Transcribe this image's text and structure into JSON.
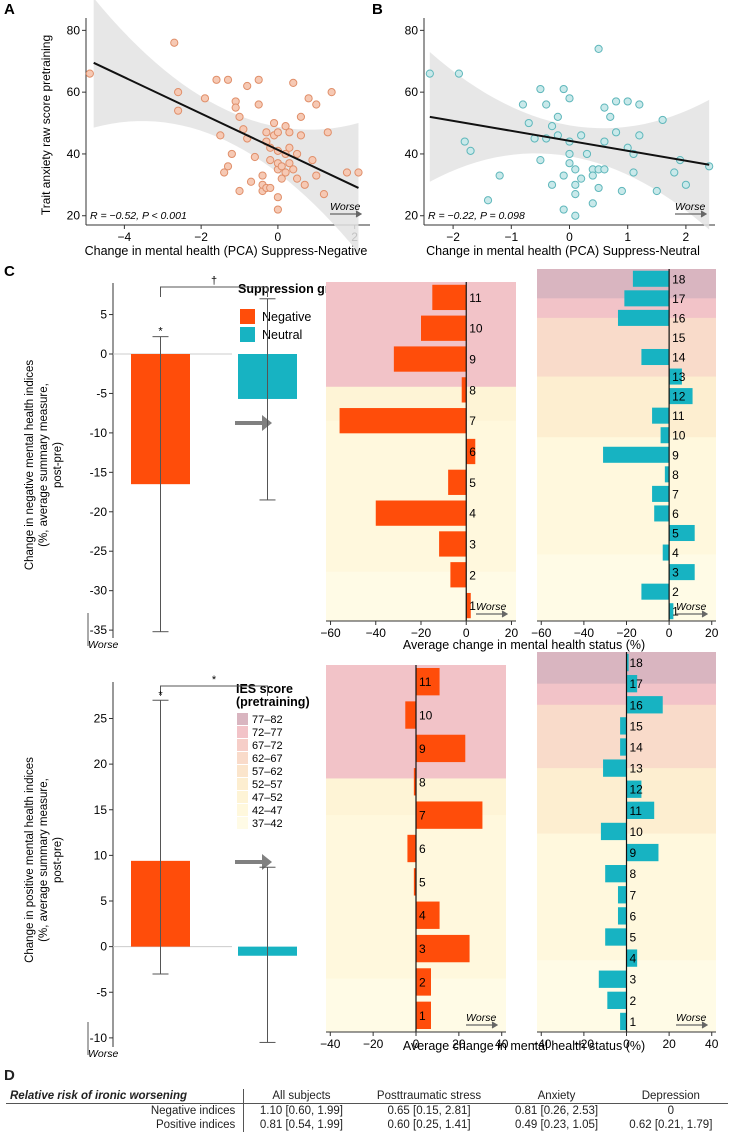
{
  "panels": {
    "A": "A",
    "B": "B",
    "C": "C",
    "D": "D"
  },
  "colors": {
    "negative": "#ff4d0a",
    "neutral": "#17b3c2",
    "ci_band": "#e3e3e3",
    "point_a_fill": "#f6c9b4",
    "point_a_stroke": "#e08f6a",
    "point_b_fill": "#c9e9ea",
    "point_b_stroke": "#5fb7bb"
  },
  "ies_colors": {
    "77-82": "#d9b5c0",
    "72-77": "#f2c3c8",
    "67-72": "#f6cec8",
    "62-67": "#f9dbca",
    "57-62": "#fbe5cc",
    "52-57": "#fdeed0",
    "47-52": "#fef4d6",
    "42-47": "#fff8dd",
    "37-42": "#fffbe6"
  },
  "chart_data": [
    {
      "id": "A",
      "type": "scatter",
      "ylabel": "Trait anxiety raw score pretraining",
      "xlabel": "Change in mental health (PCA) Suppress-Negative",
      "xlim": [
        -5,
        2.4
      ],
      "ylim": [
        17,
        84
      ],
      "xticks": [
        "-4",
        "-2",
        "0",
        "2"
      ],
      "yticks": [
        "20",
        "40",
        "60",
        "80"
      ],
      "annotation": "R = −0.52, P < 0.001",
      "worse_label": "Worse",
      "regression": {
        "x0": -4.8,
        "y0": 69.5,
        "x1": 2.1,
        "y1": 29
      },
      "points": [
        [
          -4.9,
          66
        ],
        [
          -2.7,
          76
        ],
        [
          -2.6,
          54
        ],
        [
          -2.6,
          60
        ],
        [
          -1.9,
          58
        ],
        [
          -1.6,
          64
        ],
        [
          -1.5,
          46
        ],
        [
          -1.4,
          34
        ],
        [
          -1.3,
          36
        ],
        [
          -1.3,
          64
        ],
        [
          -1.2,
          40
        ],
        [
          -1.1,
          57
        ],
        [
          -1.1,
          55
        ],
        [
          -1.0,
          52
        ],
        [
          -1.0,
          28
        ],
        [
          -0.9,
          48
        ],
        [
          -0.8,
          45
        ],
        [
          -0.8,
          62
        ],
        [
          -0.7,
          31
        ],
        [
          -0.6,
          39
        ],
        [
          -0.5,
          64
        ],
        [
          -0.5,
          56
        ],
        [
          -0.4,
          28
        ],
        [
          -0.4,
          30
        ],
        [
          -0.4,
          33
        ],
        [
          -0.3,
          29
        ],
        [
          -0.3,
          44
        ],
        [
          -0.3,
          47
        ],
        [
          -0.2,
          42
        ],
        [
          -0.2,
          38
        ],
        [
          -0.2,
          29
        ],
        [
          -0.1,
          46
        ],
        [
          -0.1,
          50
        ],
        [
          0.0,
          35
        ],
        [
          0.0,
          41
        ],
        [
          0.0,
          47
        ],
        [
          0.0,
          37
        ],
        [
          0.0,
          26
        ],
        [
          0.0,
          22
        ],
        [
          0.1,
          32
        ],
        [
          0.1,
          36
        ],
        [
          0.2,
          49
        ],
        [
          0.2,
          40
        ],
        [
          0.2,
          34
        ],
        [
          0.3,
          47
        ],
        [
          0.3,
          42
        ],
        [
          0.3,
          37
        ],
        [
          0.4,
          63
        ],
        [
          0.4,
          35
        ],
        [
          0.5,
          32
        ],
        [
          0.5,
          40
        ],
        [
          0.6,
          52
        ],
        [
          0.6,
          46
        ],
        [
          0.7,
          30
        ],
        [
          0.8,
          58
        ],
        [
          0.9,
          38
        ],
        [
          1.0,
          56
        ],
        [
          1.0,
          33
        ],
        [
          1.2,
          27
        ],
        [
          1.3,
          47
        ],
        [
          1.4,
          60
        ],
        [
          1.8,
          34
        ],
        [
          2.1,
          34
        ]
      ]
    },
    {
      "id": "B",
      "type": "scatter",
      "ylabel": "",
      "xlabel": "Change in mental health (PCA) Suppress-Neutral",
      "xlim": [
        -2.5,
        2.5
      ],
      "ylim": [
        17,
        84
      ],
      "xticks": [
        "-2",
        "-1",
        "0",
        "1",
        "2"
      ],
      "yticks": [
        "20",
        "40",
        "60",
        "80"
      ],
      "annotation": "R = −0.22, P = 0.098",
      "worse_label": "Worse",
      "regression": {
        "x0": -2.4,
        "y0": 52,
        "x1": 2.4,
        "y1": 36.5
      },
      "points": [
        [
          -2.4,
          66
        ],
        [
          -1.9,
          66
        ],
        [
          -1.8,
          44
        ],
        [
          -1.7,
          41
        ],
        [
          -1.4,
          25
        ],
        [
          -1.2,
          33
        ],
        [
          -0.8,
          56
        ],
        [
          -0.7,
          50
        ],
        [
          -0.6,
          45
        ],
        [
          -0.5,
          38
        ],
        [
          -0.5,
          61
        ],
        [
          -0.4,
          56
        ],
        [
          -0.4,
          45
        ],
        [
          -0.3,
          49
        ],
        [
          -0.3,
          30
        ],
        [
          -0.2,
          46
        ],
        [
          -0.2,
          52
        ],
        [
          -0.1,
          61
        ],
        [
          -0.1,
          22
        ],
        [
          -0.1,
          33
        ],
        [
          0.0,
          58
        ],
        [
          0.0,
          40
        ],
        [
          0.0,
          44
        ],
        [
          0.0,
          37
        ],
        [
          0.1,
          35
        ],
        [
          0.1,
          30
        ],
        [
          0.1,
          27
        ],
        [
          0.1,
          20
        ],
        [
          0.2,
          32
        ],
        [
          0.2,
          46
        ],
        [
          0.3,
          40
        ],
        [
          0.4,
          35
        ],
        [
          0.4,
          24
        ],
        [
          0.4,
          33
        ],
        [
          0.5,
          35
        ],
        [
          0.5,
          29
        ],
        [
          0.5,
          74
        ],
        [
          0.6,
          55
        ],
        [
          0.6,
          44
        ],
        [
          0.6,
          35
        ],
        [
          0.7,
          52
        ],
        [
          0.8,
          57
        ],
        [
          0.8,
          47
        ],
        [
          0.9,
          28
        ],
        [
          1.0,
          57
        ],
        [
          1.0,
          42
        ],
        [
          1.1,
          34
        ],
        [
          1.1,
          40
        ],
        [
          1.2,
          46
        ],
        [
          1.2,
          56
        ],
        [
          1.5,
          28
        ],
        [
          1.6,
          51
        ],
        [
          1.8,
          34
        ],
        [
          1.9,
          38
        ],
        [
          2.0,
          30
        ],
        [
          2.4,
          36
        ]
      ]
    },
    {
      "id": "C1-bar",
      "type": "bar",
      "ylabel": "Change in negative mental health indices (%, average summary measure, post-pre)",
      "ylim": [
        -36,
        9
      ],
      "yticks": [
        "5",
        "0",
        "-5",
        "-10",
        "-15",
        "-20",
        "-25",
        "-30",
        "-35"
      ],
      "series": [
        {
          "name": "Negative",
          "value": -16.5,
          "ci": [
            -35.2,
            2.2
          ]
        },
        {
          "name": "Neutral",
          "value": -5.7,
          "ci": [
            -18.5,
            7.0
          ]
        }
      ],
      "significance": {
        "pair": "†",
        "bar": "*"
      },
      "worse_label": "Worse"
    },
    {
      "id": "C1-neg",
      "type": "bar",
      "orientation": "horizontal",
      "xlim": [
        -62,
        22
      ],
      "xticks": [
        "-60",
        "-40",
        "-20",
        "0",
        "20"
      ],
      "levels": [
        "1",
        "2",
        "3",
        "4",
        "5",
        "6",
        "7",
        "8",
        "9",
        "10",
        "11"
      ],
      "values": [
        2,
        -7,
        -12,
        -40,
        -8,
        4,
        -56,
        -2,
        -32,
        -20,
        -15
      ],
      "worse_label": "Worse"
    },
    {
      "id": "C1-neu",
      "type": "bar",
      "orientation": "horizontal",
      "xlim": [
        -62,
        22
      ],
      "xticks": [
        "-60",
        "-40",
        "-20",
        "0",
        "20"
      ],
      "levels": [
        "1",
        "2",
        "3",
        "4",
        "5",
        "6",
        "7",
        "8",
        "9",
        "10",
        "11",
        "12",
        "13",
        "14",
        "15",
        "16",
        "17",
        "18"
      ],
      "values": [
        2,
        -13,
        12,
        -3,
        12,
        -7,
        -8,
        -2,
        -31,
        -4,
        -8,
        11,
        6,
        -13,
        0,
        -24,
        -21,
        -17
      ],
      "worse_label": "Worse"
    },
    {
      "id": "C2-bar",
      "type": "bar",
      "ylabel": "Change in positive mental health indices (%, average summary measure, post-pre)",
      "ylim": [
        -11,
        29
      ],
      "yticks": [
        "25",
        "20",
        "15",
        "10",
        "5",
        "0",
        "-5",
        "-10"
      ],
      "series": [
        {
          "name": "Negative",
          "value": 9.4,
          "ci": [
            -3.0,
            27.0
          ]
        },
        {
          "name": "Neutral",
          "value": -1.0,
          "ci": [
            -10.5,
            8.7
          ]
        }
      ],
      "significance": {
        "pair": "*",
        "bar": "*"
      },
      "worse_label": "Worse"
    },
    {
      "id": "C2-neg",
      "type": "bar",
      "orientation": "horizontal",
      "xlim": [
        -42,
        42
      ],
      "xticks": [
        "-40",
        "-20",
        "0",
        "20",
        "40"
      ],
      "levels": [
        "1",
        "2",
        "3",
        "4",
        "5",
        "6",
        "7",
        "8",
        "9",
        "10",
        "11"
      ],
      "values": [
        7,
        7,
        25,
        11,
        -1,
        -4,
        31,
        -1,
        23,
        -5,
        11
      ],
      "worse_label": "Worse"
    },
    {
      "id": "C2-neu",
      "type": "bar",
      "orientation": "horizontal",
      "xlim": [
        -42,
        42
      ],
      "xticks": [
        "-40",
        "-20",
        "0",
        "20",
        "40"
      ],
      "levels": [
        "1",
        "2",
        "3",
        "4",
        "5",
        "6",
        "7",
        "8",
        "9",
        "10",
        "11",
        "12",
        "13",
        "14",
        "15",
        "16",
        "17",
        "18"
      ],
      "values": [
        -3,
        -9,
        -13,
        5,
        -10,
        -4,
        -4,
        -10,
        15,
        -12,
        13,
        7,
        -11,
        -3,
        -3,
        17,
        5,
        1
      ],
      "worse_label": "Worse"
    }
  ],
  "c_common_xlabel": "Average change in mental health status (%)",
  "legend_suppression": {
    "title": "Suppression group",
    "items": [
      "Negative",
      "Neutral"
    ]
  },
  "legend_ies": {
    "title_line1": "IES score",
    "title_line2": "(pretraining)",
    "items": [
      "77–82",
      "72–77",
      "67–72",
      "62–67",
      "57–62",
      "52–57",
      "47–52",
      "42–47",
      "37–42"
    ]
  },
  "table": {
    "caption": "Relative risk of ironic worsening",
    "headers": [
      "All subjects",
      "Posttraumatic stress",
      "Anxiety",
      "Depression"
    ],
    "rows": [
      {
        "label": "Negative indices",
        "cells": [
          "1.10 [0.60, 1.99]",
          "0.65 [0.15, 2.81]",
          "0.81 [0.26, 2.53]",
          "0"
        ]
      },
      {
        "label": "Positive indices",
        "cells": [
          "0.81 [0.54, 1.99]",
          "0.60 [0.25, 1.41]",
          "0.49 [0.23, 1.05]",
          "0.62 [0.21, 1.79]"
        ]
      }
    ]
  }
}
